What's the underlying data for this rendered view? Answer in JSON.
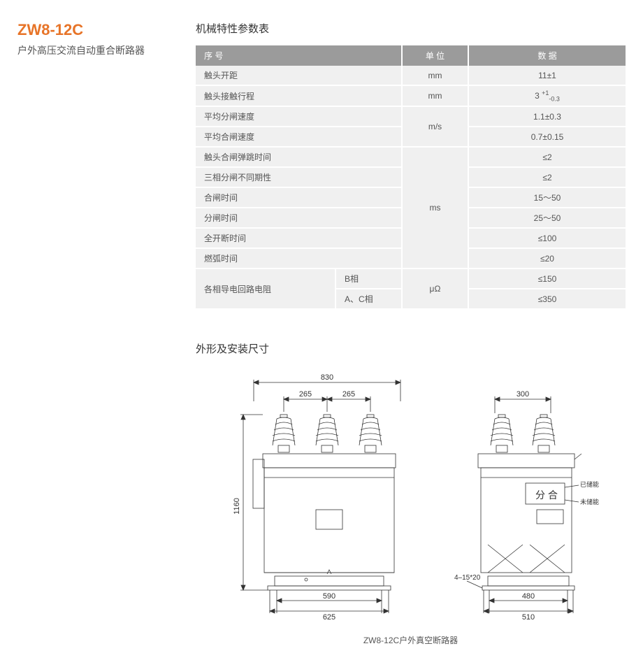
{
  "product": {
    "code": "ZW8-12C",
    "description": "户外高压交流自动重合断路器"
  },
  "table": {
    "title": "机械特性参数表",
    "headers": {
      "name": "序  号",
      "unit": "单  位",
      "data": "数  据"
    },
    "rows": [
      {
        "name": "触头开距",
        "unit": "mm",
        "value": "11±1"
      },
      {
        "name": "触头接触行程",
        "unit": "mm",
        "value": "3",
        "super": "+1",
        "suber": "-0.3"
      },
      {
        "name": "平均分闸速度",
        "unit": "m/s",
        "unitSpan": 2,
        "value": "1.1±0.3"
      },
      {
        "name": "平均合闸速度",
        "value": "0.7±0.15"
      },
      {
        "name": "触头合闸弹跳时间",
        "unit": "ms",
        "unitSpan": 6,
        "value": "≤2"
      },
      {
        "name": "三相分闸不同期性",
        "value": "≤2"
      },
      {
        "name": "合闸时间",
        "value": "15～50"
      },
      {
        "name": "分闸时间",
        "value": "25～50"
      },
      {
        "name": "全开断时间",
        "value": "≤100"
      },
      {
        "name": "燃弧时间",
        "value": "≤20"
      },
      {
        "name": "各相导电回路电阻",
        "nameSpan": 2,
        "sub": "B相",
        "unit": "μΩ",
        "unitSpan": 2,
        "value": "≤150"
      },
      {
        "sub": "A、C相",
        "value": "≤350"
      }
    ]
  },
  "dimensions": {
    "title": "外形及安装尺寸",
    "caption": "ZW8-12C户外真空断路器",
    "front": {
      "width_top": "830",
      "spacing_left": "265",
      "spacing_right": "265",
      "height": "1160",
      "base_inner": "590",
      "base_outer": "625"
    },
    "side": {
      "width_top": "300",
      "label_stored": "已储能",
      "label_split": "分",
      "label_close": "合",
      "label_notstored": "未储能",
      "slot": "4–15*20",
      "base_inner": "480",
      "base_outer": "510"
    }
  },
  "colors": {
    "accent": "#e77428",
    "header_bg": "#9b9b9b",
    "cell_bg": "#f0f0f0",
    "text": "#555555",
    "line": "#333333"
  }
}
